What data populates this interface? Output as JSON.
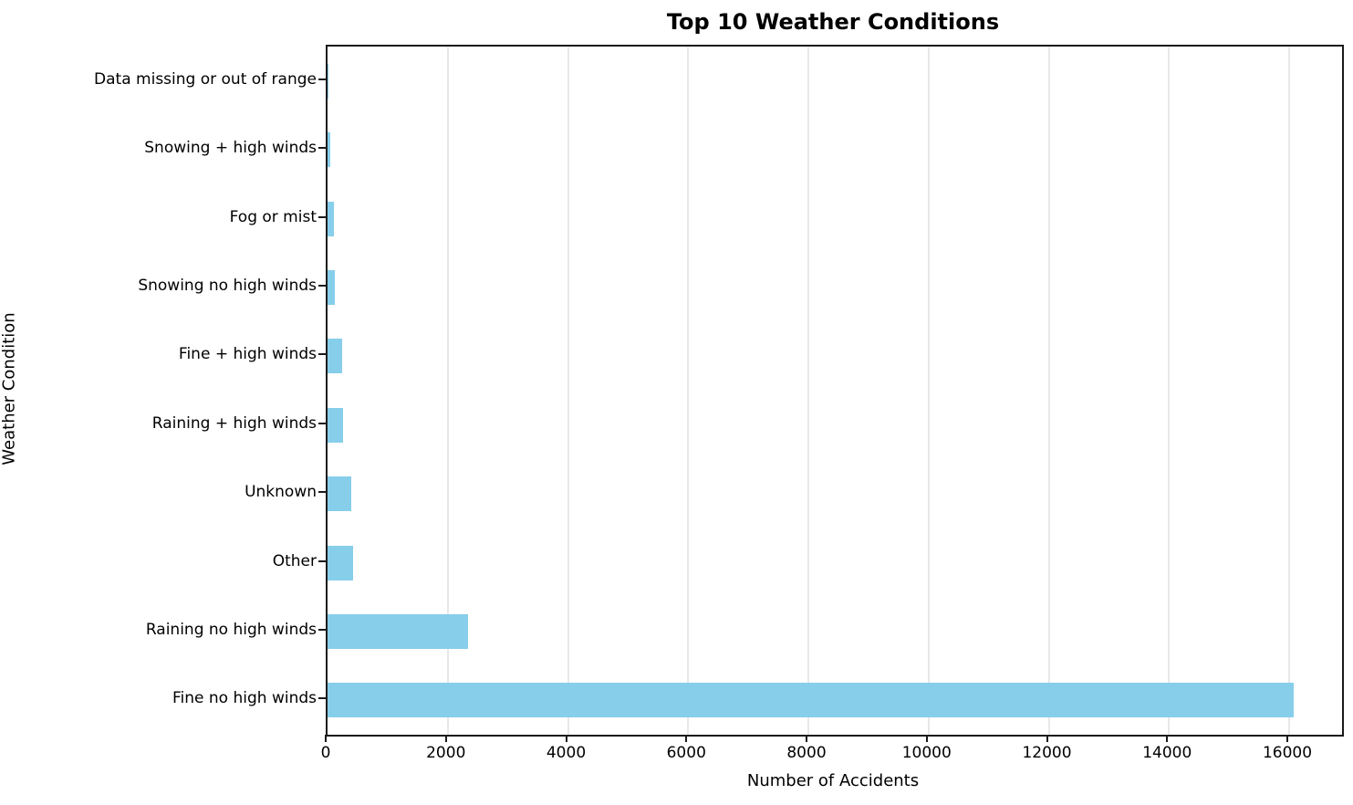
{
  "chart_data": {
    "type": "bar",
    "orientation": "horizontal",
    "title": "Top 10 Weather Conditions",
    "xlabel": "Number of Accidents",
    "ylabel": "Weather Condition",
    "categories_top_to_bottom": [
      "Data missing or out of range",
      "Snowing + high winds",
      "Fog or mist",
      "Snowing no high winds",
      "Fine + high winds",
      "Raining + high winds",
      "Unknown",
      "Other",
      "Raining no high winds",
      "Fine no high winds"
    ],
    "values_top_to_bottom": [
      5,
      40,
      105,
      120,
      240,
      255,
      390,
      430,
      2335,
      16080
    ],
    "x_ticks": [
      0,
      2000,
      4000,
      6000,
      8000,
      10000,
      12000,
      14000,
      16000
    ],
    "x_tick_labels": [
      "0",
      "2000",
      "4000",
      "6000",
      "8000",
      "10000",
      "12000",
      "14000",
      "16000"
    ],
    "xlim": [
      0,
      16880
    ],
    "grid": "vertical-only",
    "legend": "none",
    "colors": {
      "bar": "#87CEEB",
      "grid": "#e8e8e8",
      "spine": "#1a1a1a",
      "text": "#000000",
      "background": "#ffffff"
    }
  }
}
